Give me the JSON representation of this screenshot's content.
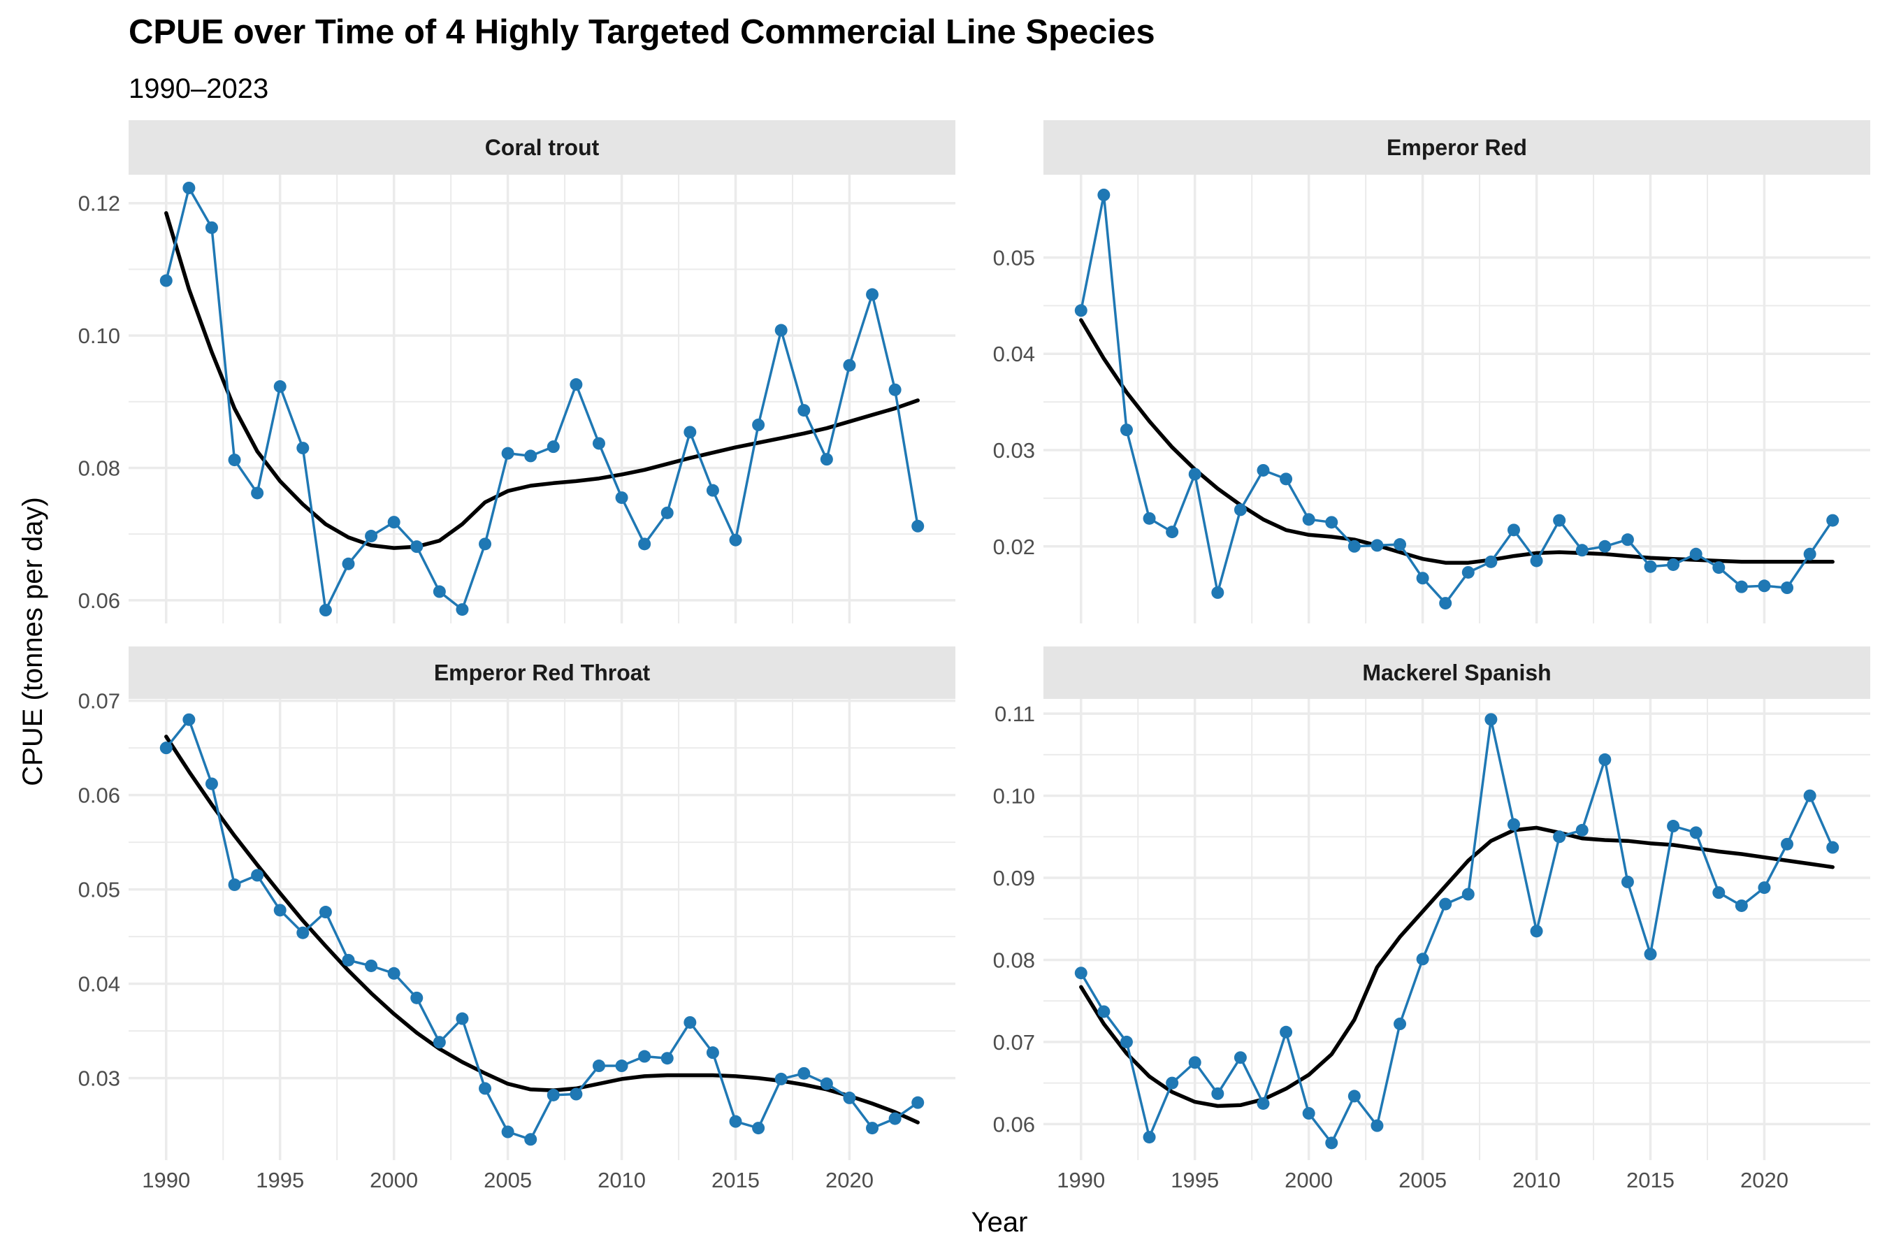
{
  "title": "CPUE over Time of 4 Highly Targeted Commercial Line Species",
  "subtitle": "1990–2023",
  "xlabel": "Year",
  "ylabel": "CPUE (tonnes per day)",
  "colors": {
    "series": "#1f78b4",
    "smooth": "#000000",
    "strip_bg": "#e5e5e5",
    "grid": "#ebebeb"
  },
  "chart_data": [
    {
      "type": "line",
      "panel": "Coral trout",
      "x": [
        1990,
        1991,
        1992,
        1993,
        1994,
        1995,
        1996,
        1997,
        1998,
        1999,
        2000,
        2001,
        2002,
        2003,
        2004,
        2005,
        2006,
        2007,
        2008,
        2009,
        2010,
        2011,
        2012,
        2013,
        2014,
        2015,
        2016,
        2017,
        2018,
        2019,
        2020,
        2021,
        2022,
        2023
      ],
      "series": [
        {
          "values": [
            0.1083,
            0.1223,
            0.1163,
            0.0812,
            0.0762,
            0.0923,
            0.083,
            0.0585,
            0.0655,
            0.0697,
            0.0718,
            0.0681,
            0.0613,
            0.0586,
            0.0685,
            0.0822,
            0.0818,
            0.0832,
            0.0926,
            0.0837,
            0.0755,
            0.0685,
            0.0732,
            0.0854,
            0.0766,
            0.0691,
            0.0865,
            0.1008,
            0.0887,
            0.0813,
            0.0955,
            0.1062,
            0.0918,
            0.0712
          ]
        },
        {
          "smooth": true,
          "values": [
            0.1185,
            0.107,
            0.0975,
            0.089,
            0.0825,
            0.078,
            0.0745,
            0.0715,
            0.0695,
            0.0683,
            0.0679,
            0.0681,
            0.069,
            0.0715,
            0.0748,
            0.0765,
            0.0773,
            0.0777,
            0.078,
            0.0784,
            0.079,
            0.0797,
            0.0806,
            0.0815,
            0.0823,
            0.0831,
            0.0838,
            0.0845,
            0.0852,
            0.086,
            0.087,
            0.088,
            0.089,
            0.0902
          ]
        }
      ],
      "yticks": [
        0.06,
        0.08,
        0.1,
        0.12
      ],
      "ytick_labels": [
        "0.06",
        "0.08",
        "0.10",
        "0.12"
      ],
      "ylim": [
        0.0565,
        0.1243
      ],
      "xlim": [
        1988.35,
        2024.65
      ],
      "xticks": [
        1990,
        1995,
        2000,
        2005,
        2010,
        2015,
        2020
      ],
      "xtick_labels": [],
      "grid": true
    },
    {
      "type": "line",
      "panel": "Emperor Red",
      "x": [
        1990,
        1991,
        1992,
        1993,
        1994,
        1995,
        1996,
        1997,
        1998,
        1999,
        2000,
        2001,
        2002,
        2003,
        2004,
        2005,
        2006,
        2007,
        2008,
        2009,
        2010,
        2011,
        2012,
        2013,
        2014,
        2015,
        2016,
        2017,
        2018,
        2019,
        2020,
        2021,
        2022,
        2023
      ],
      "series": [
        {
          "values": [
            0.0445,
            0.0565,
            0.0321,
            0.0229,
            0.0215,
            0.0275,
            0.0152,
            0.0238,
            0.0279,
            0.027,
            0.0228,
            0.0225,
            0.02,
            0.0201,
            0.0202,
            0.0167,
            0.0141,
            0.0173,
            0.0184,
            0.0217,
            0.0185,
            0.0227,
            0.0196,
            0.02,
            0.0207,
            0.0179,
            0.0181,
            0.0192,
            0.0178,
            0.0158,
            0.0159,
            0.0157,
            0.0192,
            0.0227
          ]
        },
        {
          "smooth": true,
          "values": [
            0.0435,
            0.0395,
            0.036,
            0.033,
            0.0303,
            0.028,
            0.026,
            0.0243,
            0.0228,
            0.0217,
            0.0212,
            0.021,
            0.0207,
            0.0201,
            0.0194,
            0.0187,
            0.0183,
            0.0183,
            0.0186,
            0.019,
            0.0193,
            0.0194,
            0.0193,
            0.0192,
            0.019,
            0.0188,
            0.0187,
            0.0186,
            0.0185,
            0.0184,
            0.0184,
            0.0184,
            0.0184,
            0.0184
          ]
        }
      ],
      "yticks": [
        0.02,
        0.03,
        0.04,
        0.05
      ],
      "ytick_labels": [
        "0.02",
        "0.03",
        "0.04",
        "0.05"
      ],
      "ylim": [
        0.012,
        0.0586
      ],
      "xlim": [
        1988.35,
        2024.65
      ],
      "xticks": [
        1990,
        1995,
        2000,
        2005,
        2010,
        2015,
        2020
      ],
      "xtick_labels": [],
      "grid": true
    },
    {
      "type": "line",
      "panel": "Emperor Red Throat",
      "x": [
        1990,
        1991,
        1992,
        1993,
        1994,
        1995,
        1996,
        1997,
        1998,
        1999,
        2000,
        2001,
        2002,
        2003,
        2004,
        2005,
        2006,
        2007,
        2008,
        2009,
        2010,
        2011,
        2012,
        2013,
        2014,
        2015,
        2016,
        2017,
        2018,
        2019,
        2020,
        2021,
        2022,
        2023
      ],
      "series": [
        {
          "values": [
            0.065,
            0.068,
            0.0612,
            0.0505,
            0.0515,
            0.0478,
            0.0454,
            0.0476,
            0.0425,
            0.0419,
            0.0411,
            0.0385,
            0.0338,
            0.0363,
            0.0289,
            0.0243,
            0.0235,
            0.0282,
            0.0283,
            0.0313,
            0.0313,
            0.0323,
            0.0321,
            0.0359,
            0.0327,
            0.0254,
            0.0247,
            0.0299,
            0.0305,
            0.0294,
            0.0279,
            0.0247,
            0.0257,
            0.0274
          ]
        },
        {
          "smooth": true,
          "values": [
            0.0662,
            0.0625,
            0.059,
            0.0557,
            0.0526,
            0.0496,
            0.0467,
            0.044,
            0.0414,
            0.039,
            0.0368,
            0.0348,
            0.0331,
            0.0317,
            0.0305,
            0.0294,
            0.0288,
            0.0287,
            0.0289,
            0.0294,
            0.0299,
            0.0302,
            0.0303,
            0.0303,
            0.0303,
            0.0302,
            0.03,
            0.0297,
            0.0293,
            0.0288,
            0.0281,
            0.0273,
            0.0264,
            0.0253
          ]
        }
      ],
      "yticks": [
        0.03,
        0.04,
        0.05,
        0.06,
        0.07
      ],
      "ytick_labels": [
        "0.03",
        "0.04",
        "0.05",
        "0.06",
        "0.07"
      ],
      "ylim": [
        0.0213,
        0.0702
      ],
      "xlim": [
        1988.35,
        2024.65
      ],
      "xticks": [
        1990,
        1995,
        2000,
        2005,
        2010,
        2015,
        2020
      ],
      "xtick_labels": [
        "1990",
        "1995",
        "2000",
        "2005",
        "2010",
        "2015",
        "2020"
      ],
      "grid": true
    },
    {
      "type": "line",
      "panel": "Mackerel Spanish",
      "x": [
        1990,
        1991,
        1992,
        1993,
        1994,
        1995,
        1996,
        1997,
        1998,
        1999,
        2000,
        2001,
        2002,
        2003,
        2004,
        2005,
        2006,
        2007,
        2008,
        2009,
        2010,
        2011,
        2012,
        2013,
        2014,
        2015,
        2016,
        2017,
        2018,
        2019,
        2020,
        2021,
        2022,
        2023
      ],
      "series": [
        {
          "values": [
            0.0784,
            0.0737,
            0.07,
            0.0584,
            0.065,
            0.0675,
            0.0637,
            0.0681,
            0.0625,
            0.0712,
            0.0613,
            0.0577,
            0.0634,
            0.0598,
            0.0722,
            0.0801,
            0.0868,
            0.088,
            0.1093,
            0.0965,
            0.0835,
            0.095,
            0.0958,
            0.1044,
            0.0895,
            0.0807,
            0.0963,
            0.0955,
            0.0882,
            0.0866,
            0.0888,
            0.0941,
            0.1,
            0.0937
          ]
        },
        {
          "smooth": true,
          "values": [
            0.0767,
            0.0722,
            0.0686,
            0.0658,
            0.0639,
            0.0627,
            0.0622,
            0.0623,
            0.063,
            0.0643,
            0.066,
            0.0685,
            0.0727,
            0.0791,
            0.0828,
            0.0859,
            0.089,
            0.0921,
            0.0945,
            0.0958,
            0.0961,
            0.0955,
            0.0948,
            0.0946,
            0.0945,
            0.0942,
            0.094,
            0.0936,
            0.0932,
            0.0929,
            0.0925,
            0.0921,
            0.0917,
            0.0913
          ]
        }
      ],
      "yticks": [
        0.06,
        0.07,
        0.08,
        0.09,
        0.1,
        0.11
      ],
      "ytick_labels": [
        "0.06",
        "0.07",
        "0.08",
        "0.09",
        "0.10",
        "0.11"
      ],
      "ylim": [
        0.0556,
        0.1118
      ],
      "xlim": [
        1988.35,
        2024.65
      ],
      "xticks": [
        1990,
        1995,
        2000,
        2005,
        2010,
        2015,
        2020
      ],
      "xtick_labels": [
        "1990",
        "1995",
        "2000",
        "2005",
        "2010",
        "2015",
        "2020"
      ],
      "grid": true
    }
  ]
}
